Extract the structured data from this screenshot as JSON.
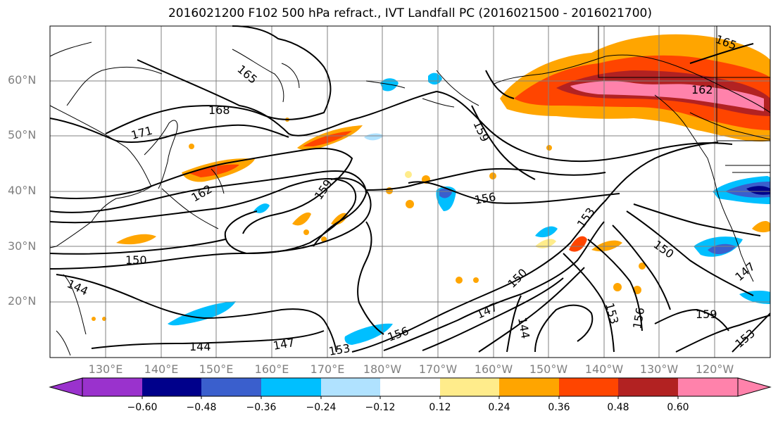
{
  "title": "2016021200 F102 500 hPa refract., IVT Landfall PC (2016021500 - 2016021700)",
  "lat_labels": [
    "60°N",
    "50°N",
    "40°N",
    "30°N",
    "20°N"
  ],
  "lon_labels": [
    "130°E",
    "140°E",
    "150°E",
    "160°E",
    "170°E",
    "180°W",
    "170°W",
    "160°W",
    "150°W",
    "140°W",
    "130°W",
    "120°W"
  ],
  "contour_labels": [
    "165",
    "168",
    "171",
    "162",
    "159",
    "156",
    "153",
    "150",
    "147",
    "144",
    "159",
    "165",
    "162",
    "159",
    "156",
    "153",
    "150",
    "147",
    "144",
    "153",
    "156",
    "159",
    "147",
    "153",
    "150",
    "144"
  ],
  "colorbar": {
    "ticks": [
      "−0.60",
      "−0.48",
      "−0.36",
      "−0.24",
      "−0.12",
      "0.12",
      "0.24",
      "0.36",
      "0.48",
      "0.60"
    ],
    "colors": [
      "#9a32cd",
      "#00008b",
      "#3a5fcd",
      "#00bfff",
      "#b0e2ff",
      "#ffffff",
      "#ffec8b",
      "#ffa500",
      "#ff4500",
      "#b22222",
      "#ff82ab",
      "#ff82ab"
    ]
  },
  "colors": {
    "land_outline": "#000000",
    "contour": "#000000",
    "grid": "#808080",
    "tick_text": "#808080"
  }
}
